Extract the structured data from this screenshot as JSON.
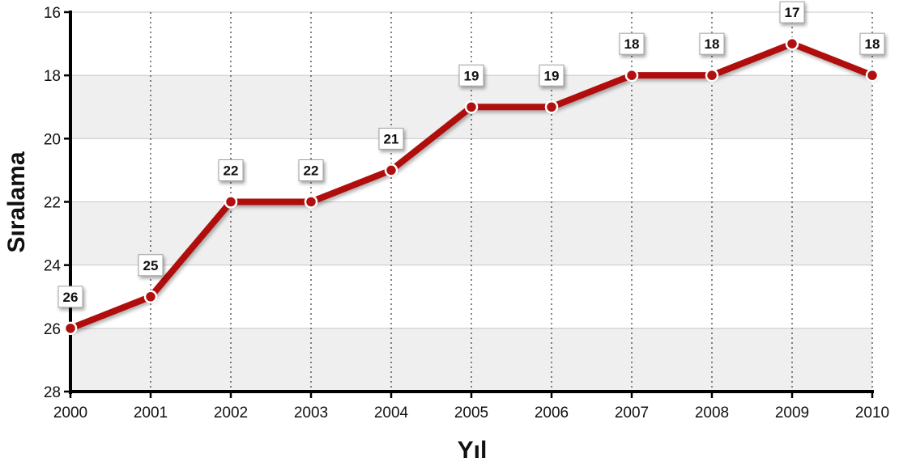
{
  "chart_data": {
    "type": "line",
    "title": "",
    "xlabel": "Yıl",
    "ylabel": "Sıralama",
    "y_inverted": true,
    "ylim": [
      16,
      28
    ],
    "yticks": [
      "16",
      "18",
      "20",
      "22",
      "24",
      "26",
      "28"
    ],
    "categories": [
      "2000",
      "2001",
      "2002",
      "2003",
      "2004",
      "2005",
      "2006",
      "2007",
      "2008",
      "2009",
      "2010"
    ],
    "series": [
      {
        "values": [
          26,
          25,
          22,
          22,
          21,
          19,
          19,
          18,
          18,
          17,
          18
        ]
      }
    ],
    "data_labels": [
      "26",
      "25",
      "22",
      "22",
      "21",
      "19",
      "19",
      "18",
      "18",
      "17",
      "18"
    ],
    "grid": {
      "horizontal": "solid",
      "vertical": "dotted"
    },
    "banded_background": true,
    "colors": {
      "line": "#b01010",
      "band": "#efefef",
      "grid": "#c8c8c8"
    }
  }
}
